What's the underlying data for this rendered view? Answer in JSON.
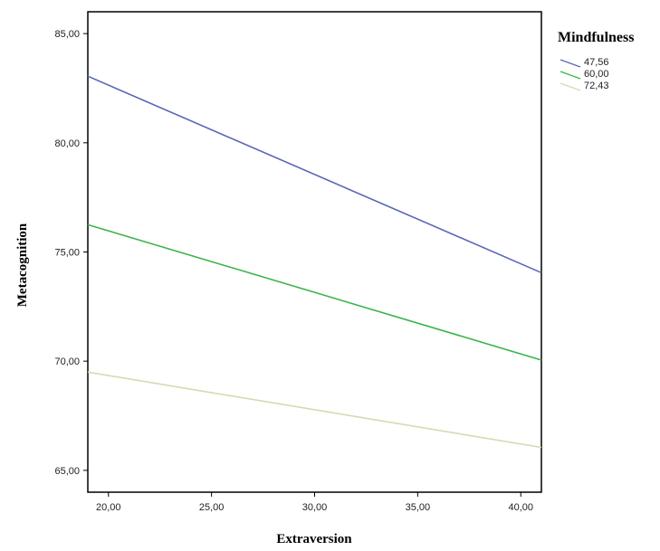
{
  "chart_data": {
    "type": "line",
    "xlabel": "Extraversion",
    "ylabel": "Metacognition",
    "xlim": [
      19,
      41
    ],
    "ylim": [
      64,
      86
    ],
    "x_ticks": [
      {
        "value": 20,
        "label": "20,00"
      },
      {
        "value": 25,
        "label": "25,00"
      },
      {
        "value": 30,
        "label": "30,00"
      },
      {
        "value": 35,
        "label": "35,00"
      },
      {
        "value": 40,
        "label": "40,00"
      }
    ],
    "y_ticks": [
      {
        "value": 65,
        "label": "65,00"
      },
      {
        "value": 70,
        "label": "70,00"
      },
      {
        "value": 75,
        "label": "75,00"
      },
      {
        "value": 80,
        "label": "80,00"
      },
      {
        "value": 85,
        "label": "85,00"
      }
    ],
    "legend": {
      "title": "Mindfulness",
      "position": "right"
    },
    "grid": false,
    "series": [
      {
        "name": "47,56",
        "color": "#5a67b6",
        "points": [
          [
            19,
            83.05
          ],
          [
            41,
            74.05
          ]
        ]
      },
      {
        "name": "60,00",
        "color": "#3ab44a",
        "points": [
          [
            19,
            76.25
          ],
          [
            41,
            70.05
          ]
        ]
      },
      {
        "name": "72,43",
        "color": "#d8d8b2",
        "points": [
          [
            19,
            69.5
          ],
          [
            41,
            66.05
          ]
        ]
      }
    ]
  }
}
